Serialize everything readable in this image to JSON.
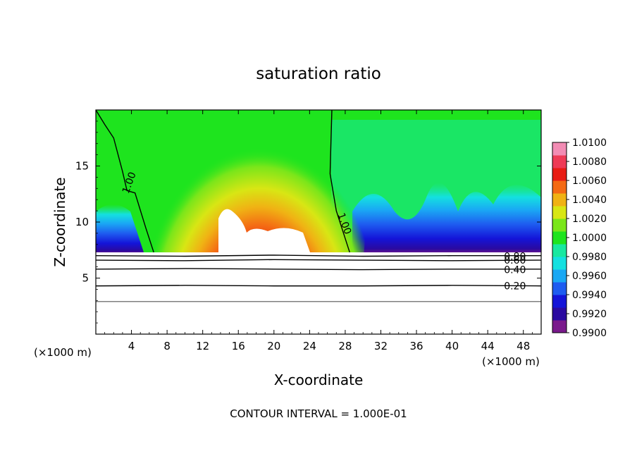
{
  "chart_data": {
    "type": "heatmap",
    "title": "saturation ratio",
    "xlabel": "X-coordinate",
    "ylabel": "Z-coordinate",
    "x_unit_left": "(×1000 m)",
    "x_unit_right": "(×1000 m)",
    "footer": "CONTOUR INTERVAL = 1.000E-01",
    "xlim": [
      0,
      50
    ],
    "ylim": [
      0,
      20
    ],
    "x_ticks": [
      4,
      8,
      12,
      16,
      20,
      24,
      28,
      32,
      36,
      40,
      44,
      48
    ],
    "x_tick_labels": [
      "4",
      "8",
      "12",
      "16",
      "20",
      "24",
      "28",
      "32",
      "36",
      "40",
      "44",
      "48"
    ],
    "y_ticks": [
      5,
      10,
      15
    ],
    "y_tick_labels": [
      "5",
      "10",
      "15"
    ],
    "colorbar": {
      "min": 0.99,
      "max": 1.01,
      "labels": [
        "1.0100",
        "1.0080",
        "1.0060",
        "1.0040",
        "1.0020",
        "1.0000",
        "0.9980",
        "0.9960",
        "0.9940",
        "0.9920",
        "0.9900"
      ],
      "colors": [
        "#7a1a8c",
        "#2a0aa0",
        "#1414d8",
        "#1e5cf0",
        "#1aa8f4",
        "#14e0e0",
        "#18e8a0",
        "#1ee41e",
        "#7ae61a",
        "#d8e614",
        "#f0b214",
        "#f46a14",
        "#e81c14",
        "#ee3a56",
        "#f28cb4"
      ]
    },
    "contour_labels": [
      "1.00",
      "1.00",
      "0.80",
      "0.60",
      "0.40",
      "0.20"
    ],
    "series": [
      {
        "name": "1.00",
        "x": [
          0.0,
          1.0,
          2.0,
          3.0,
          3.5,
          4.4,
          5.6,
          6.5
        ],
        "y": [
          20.0,
          18.7,
          17.5,
          14.5,
          12.8,
          12.6,
          9.5,
          7.3
        ]
      },
      {
        "name": "1.00",
        "x": [
          26.5,
          26.3,
          27.0,
          28.5
        ],
        "y": [
          20.0,
          14.3,
          11.0,
          7.3
        ]
      },
      {
        "name": "0.80",
        "x": [
          0,
          10,
          20,
          30,
          40,
          50
        ],
        "y": [
          7.0,
          6.95,
          7.05,
          6.95,
          7.0,
          7.0
        ]
      },
      {
        "name": "0.60",
        "x": [
          0,
          10,
          20,
          30,
          40,
          50
        ],
        "y": [
          6.6,
          6.55,
          6.65,
          6.6,
          6.55,
          6.6
        ]
      },
      {
        "name": "0.40",
        "x": [
          0,
          10,
          20,
          30,
          40,
          50
        ],
        "y": [
          5.8,
          5.85,
          5.8,
          5.75,
          5.8,
          5.8
        ]
      },
      {
        "name": "0.20",
        "x": [
          0,
          10,
          20,
          30,
          40,
          50
        ],
        "y": [
          4.3,
          4.35,
          4.3,
          4.3,
          4.35,
          4.3
        ]
      }
    ]
  }
}
